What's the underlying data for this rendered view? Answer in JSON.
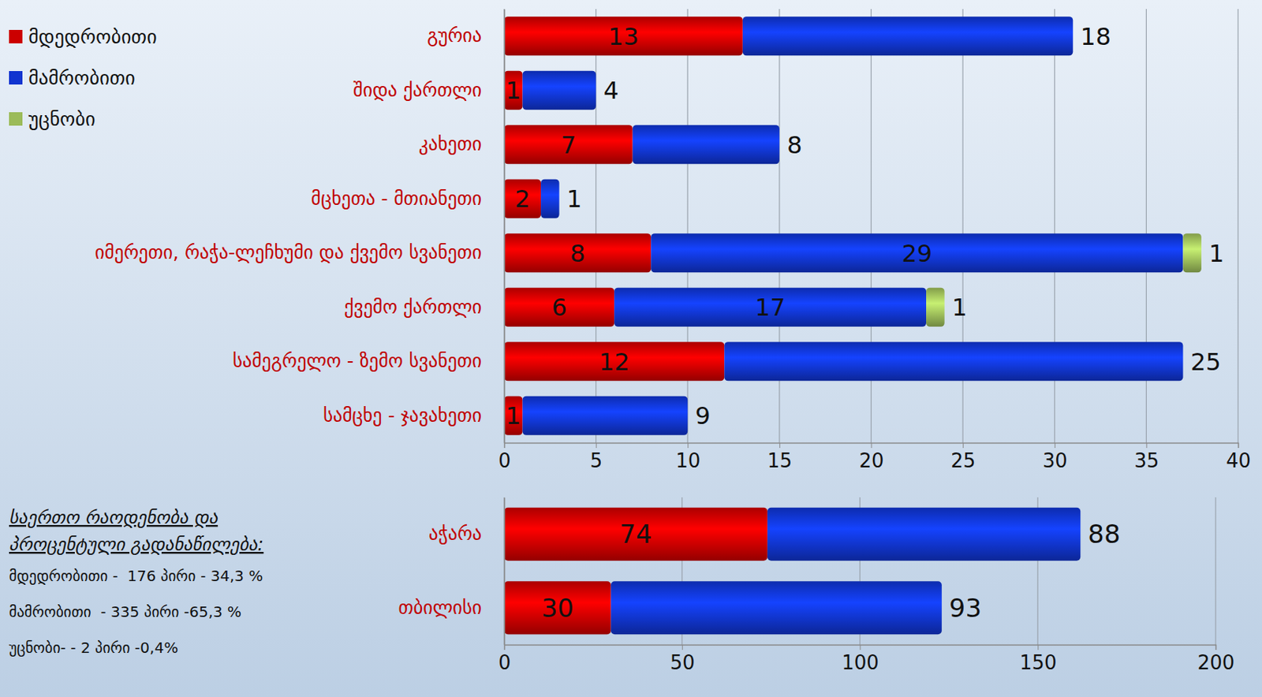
{
  "chart_data": [
    {
      "type": "bar",
      "orientation": "horizontal",
      "stacked": true,
      "data_labels": true,
      "grid": true,
      "legend": "top-left",
      "categories": [
        "გურია",
        "შიდა ქართლი",
        "კახეთი",
        "მცხეთა - მთიანეთი",
        "იმერეთი, რაჭა-ლეჩხუმი და ქვემო სვანეთი",
        "ქვემო ქართლი",
        "სამეგრელო - ზემო სვანეთი",
        "სამცხე - ჯავახეთი"
      ],
      "series": [
        {
          "name": "მდედრობითი",
          "color": "#cc0000",
          "values": [
            13,
            1,
            7,
            2,
            8,
            6,
            12,
            1
          ]
        },
        {
          "name": "მამრობითი",
          "color": "#1034d0",
          "values": [
            18,
            4,
            8,
            1,
            29,
            17,
            25,
            9
          ]
        },
        {
          "name": "უცნობი",
          "color": "#9bbb59",
          "values": [
            null,
            null,
            null,
            null,
            1,
            1,
            null,
            null
          ]
        }
      ],
      "xlim": [
        0,
        40
      ],
      "xticks": [
        0,
        5,
        10,
        15,
        20,
        25,
        30,
        35,
        40
      ],
      "annotations": [
        "საერთო რაოდენობა და პროცენტული გადანაწილება:",
        "მდედრობითი -  176 პირი - 34,3 %",
        "მამრობითი  - 335 პირი -65,3 %",
        "უცნობი- - 2 პირი -0,4%"
      ]
    },
    {
      "type": "bar",
      "orientation": "horizontal",
      "stacked": true,
      "data_labels": true,
      "grid": true,
      "categories": [
        "აჭარა",
        "თბილისი"
      ],
      "series": [
        {
          "color": "#cc0000",
          "values": [
            74,
            30
          ]
        },
        {
          "color": "#1034d0",
          "values": [
            88,
            93
          ]
        }
      ],
      "xlim": [
        0,
        200
      ],
      "xticks": [
        0,
        50,
        100,
        150,
        200
      ]
    }
  ]
}
